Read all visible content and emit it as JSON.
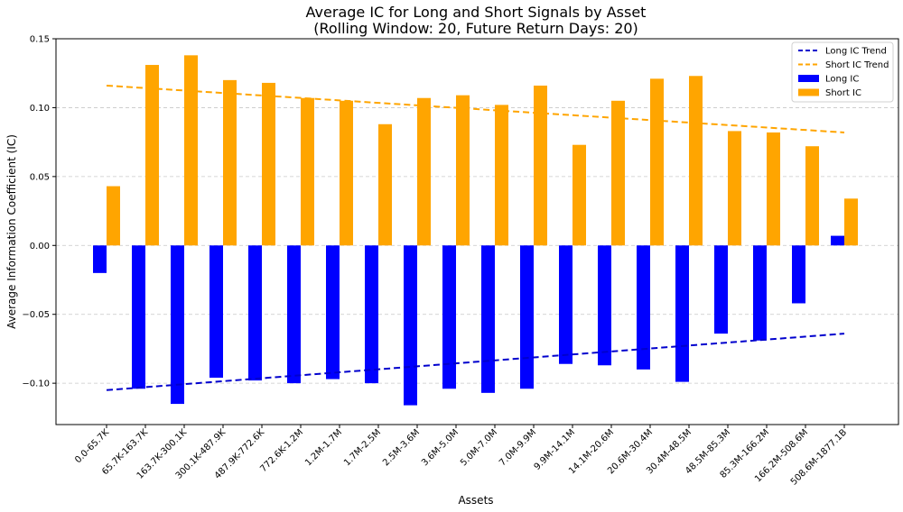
{
  "chart_data": {
    "type": "bar",
    "title": "Average IC for Long and Short Signals by Asset",
    "subtitle": "(Rolling Window: 20, Future Return Days: 20)",
    "xlabel": "Assets",
    "ylabel": "Average Information Coefficient (IC)",
    "ylim": [
      -0.13,
      0.15
    ],
    "yticks": [
      -0.1,
      -0.05,
      0.0,
      0.05,
      0.1,
      0.15
    ],
    "ytick_labels": [
      "−0.10",
      "−0.05",
      "0.00",
      "0.05",
      "0.10",
      "0.15"
    ],
    "grid": "y dashed",
    "legend_position": "top-right",
    "categories": [
      "0.0-65.7K",
      "65.7K-163.7K",
      "163.7K-300.1K",
      "300.1K-487.9K",
      "487.9K-772.6K",
      "772.6K-1.2M",
      "1.2M-1.7M",
      "1.7M-2.5M",
      "2.5M-3.6M",
      "3.6M-5.0M",
      "5.0M-7.0M",
      "7.0M-9.9M",
      "9.9M-14.1M",
      "14.1M-20.6M",
      "20.6M-30.4M",
      "30.4M-48.5M",
      "48.5M-85.3M",
      "85.3M-166.2M",
      "166.2M-508.6M",
      "508.6M-1877.1B"
    ],
    "series": [
      {
        "name": "Long IC",
        "kind": "bar",
        "color": "#0000ff",
        "values": [
          -0.02,
          -0.104,
          -0.115,
          -0.096,
          -0.098,
          -0.1,
          -0.097,
          -0.1,
          -0.116,
          -0.104,
          -0.107,
          -0.104,
          -0.086,
          -0.087,
          -0.09,
          -0.099,
          -0.064,
          -0.069,
          -0.042,
          0.007
        ]
      },
      {
        "name": "Short IC",
        "kind": "bar",
        "color": "#ffa500",
        "values": [
          0.043,
          0.131,
          0.138,
          0.12,
          0.118,
          0.107,
          0.105,
          0.088,
          0.107,
          0.109,
          0.102,
          0.116,
          0.073,
          0.105,
          0.121,
          0.123,
          0.083,
          0.082,
          0.072,
          0.034
        ]
      },
      {
        "name": "Long IC Trend",
        "kind": "trend",
        "color": "#0000cd",
        "start": -0.105,
        "end": -0.064
      },
      {
        "name": "Short IC Trend",
        "kind": "trend",
        "color": "#ffa500",
        "start": 0.116,
        "end": 0.082
      }
    ],
    "legend": [
      "Long IC Trend",
      "Short IC Trend",
      "Long IC",
      "Short IC"
    ]
  }
}
